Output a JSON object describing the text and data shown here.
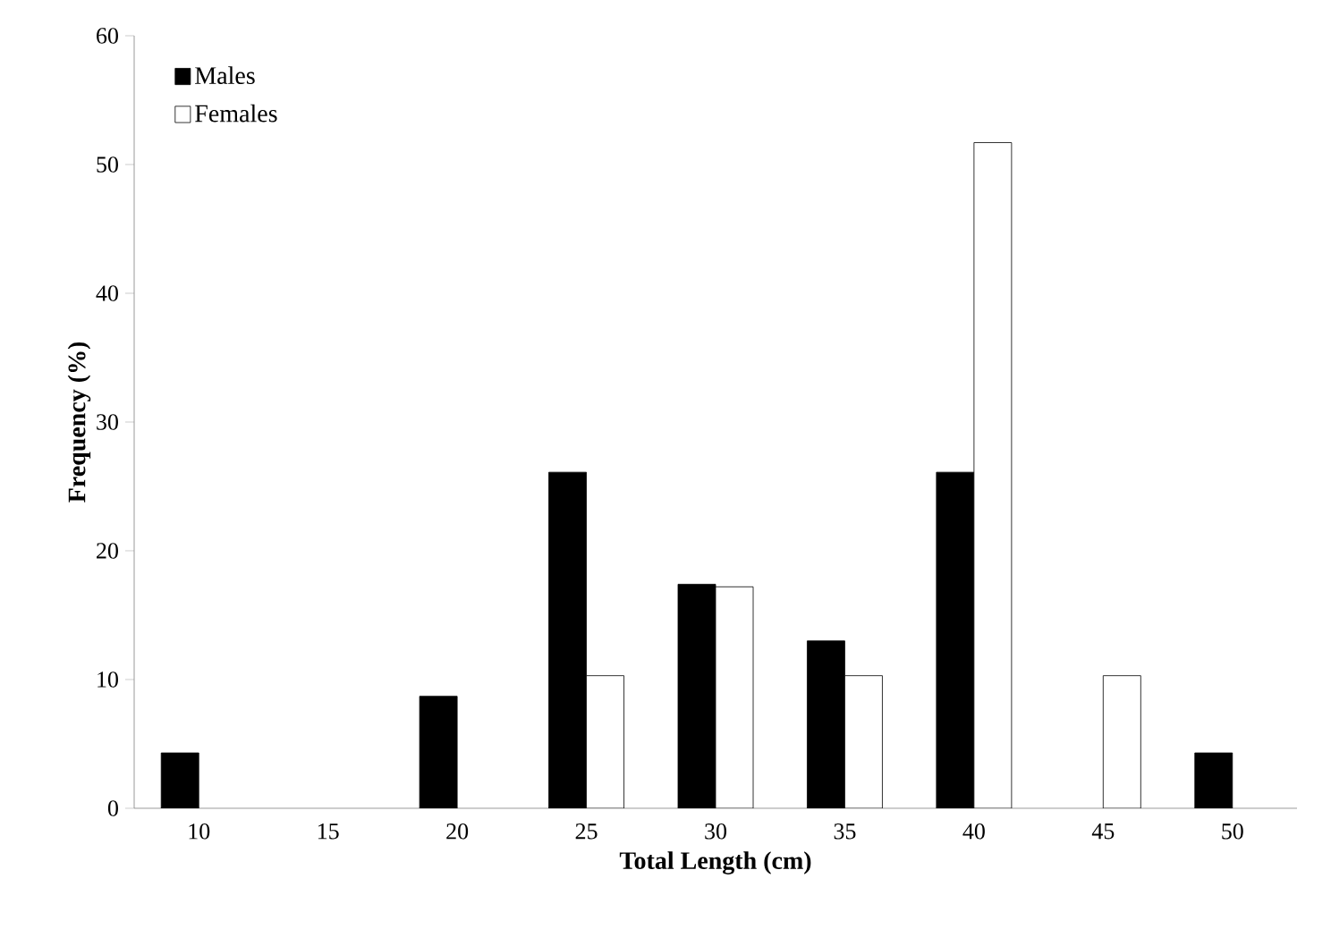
{
  "chart_data": {
    "type": "bar",
    "xlabel": "Total Length (cm)",
    "ylabel": "Frequency  (%)",
    "categories": [
      "10",
      "15",
      "20",
      "25",
      "30",
      "35",
      "40",
      "45",
      "50"
    ],
    "series": [
      {
        "name": "Males",
        "color": "#000000",
        "values": [
          4.3,
          null,
          8.7,
          26.1,
          17.4,
          13.0,
          26.1,
          null,
          4.3
        ]
      },
      {
        "name": "Females",
        "color": "#ffffff",
        "values": [
          null,
          null,
          null,
          10.3,
          17.2,
          10.3,
          51.7,
          10.3,
          null
        ]
      }
    ],
    "ylim": [
      0,
      60
    ],
    "yticks": [
      0,
      10,
      20,
      30,
      40,
      50,
      60
    ],
    "legend": "top left"
  }
}
